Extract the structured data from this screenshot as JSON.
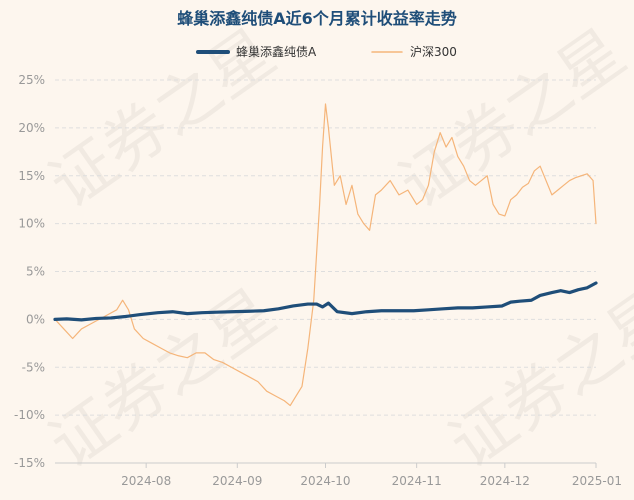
{
  "chart_data": {
    "type": "line",
    "title": "蜂巢添鑫纯债A近6个月累计收益率走势",
    "xlabel": "",
    "ylabel": "",
    "ylim": [
      -15,
      25
    ],
    "yticks": [
      -15,
      -10,
      -5,
      0,
      5,
      10,
      15,
      20,
      25
    ],
    "y_tick_labels": [
      "-15%",
      "-10%",
      "-5%",
      "0%",
      "5%",
      "10%",
      "15%",
      "20%",
      "25%"
    ],
    "x_range": [
      "2024-07-01",
      "2025-01-01"
    ],
    "x_ticks": [
      "2024-08-01",
      "2024-09-01",
      "2024-10-01",
      "2024-11-01",
      "2024-12-01",
      "2025-01-01"
    ],
    "x_tick_labels": [
      "2024-08",
      "2024-09",
      "2024-10",
      "2024-11",
      "2024-12",
      "2025-01"
    ],
    "grid": "horizontal dashed",
    "legend_position": "top-center",
    "watermark": "证券之星",
    "series": [
      {
        "name": "蜂巢添鑫纯债A",
        "color": "#1f4e79",
        "points": [
          [
            "2024-07-01",
            0.0
          ],
          [
            "2024-07-05",
            0.05
          ],
          [
            "2024-07-10",
            -0.05
          ],
          [
            "2024-07-15",
            0.1
          ],
          [
            "2024-07-20",
            0.15
          ],
          [
            "2024-07-25",
            0.3
          ],
          [
            "2024-07-30",
            0.5
          ],
          [
            "2024-08-05",
            0.7
          ],
          [
            "2024-08-10",
            0.8
          ],
          [
            "2024-08-15",
            0.6
          ],
          [
            "2024-08-20",
            0.7
          ],
          [
            "2024-08-25",
            0.75
          ],
          [
            "2024-08-30",
            0.8
          ],
          [
            "2024-09-05",
            0.85
          ],
          [
            "2024-09-10",
            0.9
          ],
          [
            "2024-09-15",
            1.1
          ],
          [
            "2024-09-20",
            1.4
          ],
          [
            "2024-09-25",
            1.6
          ],
          [
            "2024-09-28",
            1.6
          ],
          [
            "2024-09-30",
            1.3
          ],
          [
            "2024-10-02",
            1.7
          ],
          [
            "2024-10-05",
            0.8
          ],
          [
            "2024-10-10",
            0.6
          ],
          [
            "2024-10-15",
            0.8
          ],
          [
            "2024-10-20",
            0.9
          ],
          [
            "2024-10-25",
            0.9
          ],
          [
            "2024-10-31",
            0.9
          ],
          [
            "2024-11-05",
            1.0
          ],
          [
            "2024-11-10",
            1.1
          ],
          [
            "2024-11-15",
            1.2
          ],
          [
            "2024-11-20",
            1.2
          ],
          [
            "2024-11-25",
            1.3
          ],
          [
            "2024-11-30",
            1.4
          ],
          [
            "2024-12-03",
            1.8
          ],
          [
            "2024-12-06",
            1.9
          ],
          [
            "2024-12-10",
            2.0
          ],
          [
            "2024-12-13",
            2.5
          ],
          [
            "2024-12-17",
            2.8
          ],
          [
            "2024-12-20",
            3.0
          ],
          [
            "2024-12-23",
            2.8
          ],
          [
            "2024-12-26",
            3.1
          ],
          [
            "2024-12-29",
            3.3
          ],
          [
            "2025-01-01",
            3.8
          ]
        ]
      },
      {
        "name": "沪深300",
        "color": "#f5b57a",
        "points": [
          [
            "2024-07-01",
            0.0
          ],
          [
            "2024-07-04",
            -1.0
          ],
          [
            "2024-07-07",
            -2.0
          ],
          [
            "2024-07-10",
            -1.0
          ],
          [
            "2024-07-13",
            -0.5
          ],
          [
            "2024-07-16",
            0.0
          ],
          [
            "2024-07-19",
            0.5
          ],
          [
            "2024-07-22",
            1.0
          ],
          [
            "2024-07-24",
            2.0
          ],
          [
            "2024-07-26",
            1.0
          ],
          [
            "2024-07-28",
            -1.0
          ],
          [
            "2024-07-31",
            -2.0
          ],
          [
            "2024-08-03",
            -2.5
          ],
          [
            "2024-08-06",
            -3.0
          ],
          [
            "2024-08-09",
            -3.5
          ],
          [
            "2024-08-12",
            -3.8
          ],
          [
            "2024-08-15",
            -4.0
          ],
          [
            "2024-08-18",
            -3.5
          ],
          [
            "2024-08-21",
            -3.5
          ],
          [
            "2024-08-24",
            -4.2
          ],
          [
            "2024-08-27",
            -4.5
          ],
          [
            "2024-08-30",
            -5.0
          ],
          [
            "2024-09-02",
            -5.5
          ],
          [
            "2024-09-05",
            -6.0
          ],
          [
            "2024-09-08",
            -6.5
          ],
          [
            "2024-09-11",
            -7.5
          ],
          [
            "2024-09-14",
            -8.0
          ],
          [
            "2024-09-17",
            -8.5
          ],
          [
            "2024-09-19",
            -9.0
          ],
          [
            "2024-09-21",
            -8.0
          ],
          [
            "2024-09-23",
            -7.0
          ],
          [
            "2024-09-25",
            -3.0
          ],
          [
            "2024-09-27",
            2.0
          ],
          [
            "2024-09-29",
            12.0
          ],
          [
            "2024-09-30",
            18.0
          ],
          [
            "2024-10-01",
            22.5
          ],
          [
            "2024-10-02",
            20.0
          ],
          [
            "2024-10-04",
            14.0
          ],
          [
            "2024-10-06",
            15.0
          ],
          [
            "2024-10-08",
            12.0
          ],
          [
            "2024-10-10",
            14.0
          ],
          [
            "2024-10-12",
            11.0
          ],
          [
            "2024-10-14",
            10.0
          ],
          [
            "2024-10-16",
            9.3
          ],
          [
            "2024-10-18",
            13.0
          ],
          [
            "2024-10-20",
            13.5
          ],
          [
            "2024-10-23",
            14.5
          ],
          [
            "2024-10-26",
            13.0
          ],
          [
            "2024-10-29",
            13.5
          ],
          [
            "2024-11-01",
            12.0
          ],
          [
            "2024-11-03",
            12.5
          ],
          [
            "2024-11-05",
            14.0
          ],
          [
            "2024-11-07",
            17.5
          ],
          [
            "2024-11-09",
            19.5
          ],
          [
            "2024-11-11",
            18.0
          ],
          [
            "2024-11-13",
            19.0
          ],
          [
            "2024-11-15",
            17.0
          ],
          [
            "2024-11-17",
            16.0
          ],
          [
            "2024-11-19",
            14.5
          ],
          [
            "2024-11-21",
            14.0
          ],
          [
            "2024-11-23",
            14.5
          ],
          [
            "2024-11-25",
            15.0
          ],
          [
            "2024-11-27",
            12.0
          ],
          [
            "2024-11-29",
            11.0
          ],
          [
            "2024-12-01",
            10.8
          ],
          [
            "2024-12-03",
            12.5
          ],
          [
            "2024-12-05",
            13.0
          ],
          [
            "2024-12-07",
            13.8
          ],
          [
            "2024-12-09",
            14.2
          ],
          [
            "2024-12-11",
            15.5
          ],
          [
            "2024-12-13",
            16.0
          ],
          [
            "2024-12-15",
            14.5
          ],
          [
            "2024-12-17",
            13.0
          ],
          [
            "2024-12-19",
            13.5
          ],
          [
            "2024-12-21",
            14.0
          ],
          [
            "2024-12-23",
            14.5
          ],
          [
            "2024-12-25",
            14.8
          ],
          [
            "2024-12-27",
            15.0
          ],
          [
            "2024-12-29",
            15.2
          ],
          [
            "2024-12-31",
            14.5
          ],
          [
            "2025-01-01",
            10.0
          ]
        ]
      }
    ]
  }
}
